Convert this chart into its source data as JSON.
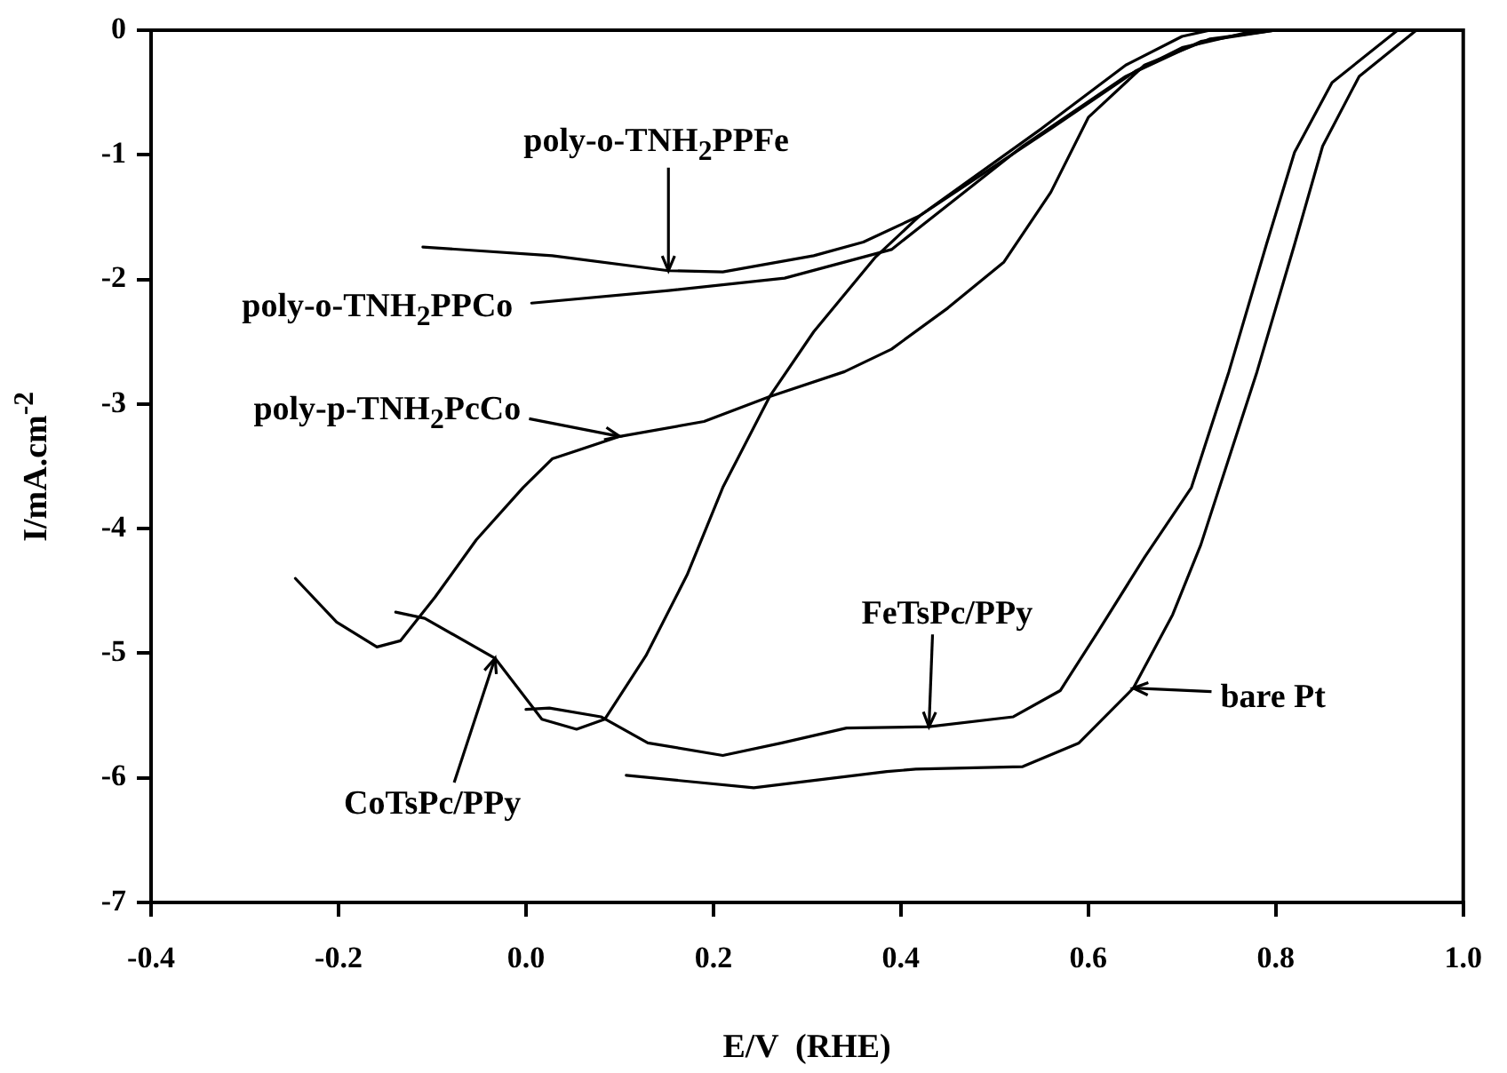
{
  "chart_data": {
    "type": "line",
    "xlabel": "E/V  (RHE)",
    "ylabel": "I/mA.cm$^{-2}$",
    "xlim": [
      -0.4,
      1.0
    ],
    "ylim": [
      -7,
      0
    ],
    "xticks": [
      -0.4,
      -0.2,
      {
        "value": 0,
        "label": "0.0"
      },
      0.2,
      0.4,
      0.6,
      0.8,
      {
        "value": 1,
        "label": "1.0"
      }
    ],
    "yticks": [
      -7,
      -6,
      -5,
      -4,
      -3,
      -2,
      -1,
      0
    ],
    "marker": "none",
    "line_style": "solid",
    "series": [
      {
        "name": "poly-o-TNH$_{2}$PPFe",
        "color": "#000000",
        "x": [
          -0.11,
          0.028,
          0.152,
          0.21,
          0.307,
          0.36,
          0.42,
          0.55,
          0.64,
          0.7,
          0.73
        ],
        "values": [
          -1.74,
          -1.81,
          -1.93,
          -1.94,
          -1.81,
          -1.7,
          -1.49,
          -0.79,
          -0.28,
          -0.05,
          0
        ]
      },
      {
        "name": "poly-o-TNH$_{2}$PPCo",
        "color": "#000000",
        "x": [
          0.006,
          0.152,
          0.276,
          0.39,
          0.53,
          0.64,
          0.72,
          0.8
        ],
        "values": [
          -2.19,
          -2.09,
          -1.99,
          -1.76,
          -0.93,
          -0.37,
          -0.09,
          0
        ]
      },
      {
        "name": "poly-p-TNH$_{2}$PcCo",
        "color": "#000000",
        "x": [
          -0.246,
          -0.202,
          -0.159,
          -0.134,
          -0.097,
          -0.053,
          -0.003,
          0.028,
          0.1,
          0.19,
          0.26,
          0.34,
          0.39,
          0.45,
          0.51,
          0.56,
          0.6,
          0.66,
          0.73,
          0.8
        ],
        "values": [
          -4.4,
          -4.75,
          -4.95,
          -4.9,
          -4.55,
          -4.09,
          -3.67,
          -3.44,
          -3.26,
          -3.14,
          -2.94,
          -2.74,
          -2.56,
          -2.23,
          -1.86,
          -1.3,
          -0.7,
          -0.28,
          -0.07,
          0
        ]
      },
      {
        "name": "CoTsPc/PPy",
        "color": "#000000",
        "x": [
          -0.139,
          -0.108,
          -0.033,
          0.017,
          0.054,
          0.084,
          0.128,
          0.172,
          0.21,
          0.26,
          0.307,
          0.373,
          0.42,
          0.56,
          0.65,
          0.7,
          0.78
        ],
        "values": [
          -4.67,
          -4.72,
          -5.04,
          -5.53,
          -5.61,
          -5.53,
          -5.02,
          -4.37,
          -3.67,
          -2.94,
          -2.42,
          -1.82,
          -1.49,
          -0.79,
          -0.33,
          -0.14,
          0
        ]
      },
      {
        "name": "FeTsPc/PPy",
        "color": "#000000",
        "x": [
          0.0,
          0.025,
          0.08,
          0.13,
          0.21,
          0.273,
          0.342,
          0.43,
          0.52,
          0.57,
          0.61,
          0.66,
          0.71,
          0.75,
          0.79,
          0.82,
          0.86,
          0.93
        ],
        "values": [
          -5.45,
          -5.44,
          -5.51,
          -5.72,
          -5.82,
          -5.72,
          -5.6,
          -5.59,
          -5.51,
          -5.3,
          -4.83,
          -4.23,
          -3.67,
          -2.74,
          -1.72,
          -0.98,
          -0.42,
          0
        ]
      },
      {
        "name": "bare Pt",
        "color": "#000000",
        "x": [
          0.107,
          0.243,
          0.385,
          0.416,
          0.53,
          0.59,
          0.648,
          0.69,
          0.72,
          0.78,
          0.82,
          0.85,
          0.889,
          0.95
        ],
        "values": [
          -5.98,
          -6.08,
          -5.95,
          -5.93,
          -5.91,
          -5.72,
          -5.28,
          -4.69,
          -4.13,
          -2.74,
          -1.72,
          -0.93,
          -0.37,
          0
        ]
      }
    ]
  }
}
